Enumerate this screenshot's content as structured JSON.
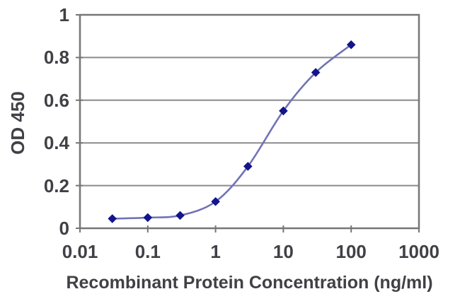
{
  "figure": {
    "background_color": "#ffffff",
    "text_color": "#404046",
    "grid_color": "#8a8a8a",
    "frame_color": "#767676",
    "line_color": "#7173b6",
    "marker_color": "#14148c"
  },
  "chart_data": {
    "type": "line",
    "title": "",
    "xlabel": "Recombinant Protein Concentration (ng/ml)",
    "ylabel": "OD 450",
    "x_scale": "log",
    "xlim": [
      0.01,
      1000
    ],
    "ylim": [
      0,
      1
    ],
    "x_tick_values": [
      0.01,
      0.1,
      1,
      10,
      100,
      1000
    ],
    "x_tick_labels": [
      "0.01",
      "0.1",
      "1",
      "10",
      "100",
      "1000"
    ],
    "y_tick_values": [
      1,
      0.8,
      0.6,
      0.4,
      0.2,
      0
    ],
    "y_tick_labels": [
      "1",
      "0.8",
      "0.6",
      "0.4",
      "0.2",
      "0"
    ],
    "grid": "horizontal-only",
    "legend": "none",
    "series": [
      {
        "name": "OD 450",
        "marker": "diamond",
        "x": [
          0.03,
          0.1,
          0.3,
          1,
          3,
          10,
          30,
          100
        ],
        "y": [
          0.045,
          0.05,
          0.06,
          0.125,
          0.29,
          0.55,
          0.73,
          0.86
        ]
      }
    ]
  }
}
